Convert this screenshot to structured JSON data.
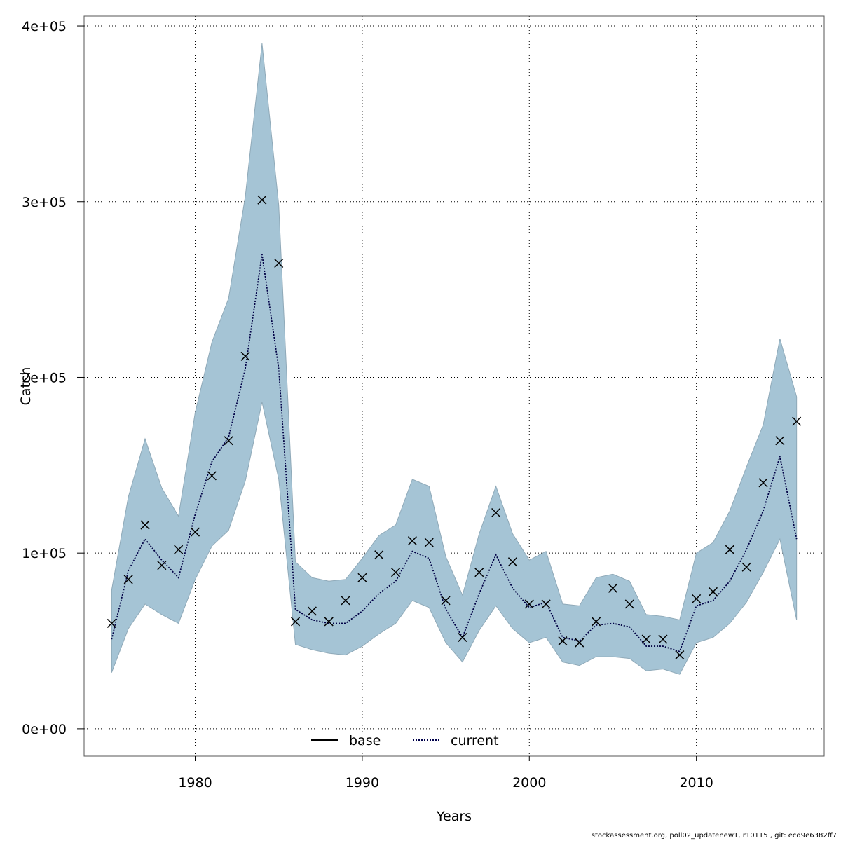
{
  "chart_data": {
    "type": "line",
    "xlabel": "Years",
    "ylabel": "Catch",
    "xlim": [
      1973.5,
      1917.5
    ],
    "ylim": [
      -15000,
      406000
    ],
    "x_ticks": [
      1980,
      1990,
      2000,
      2010
    ],
    "x_tick_labels": [
      "1980",
      "1990",
      "2000",
      "2010"
    ],
    "y_ticks": [
      0,
      100000,
      200000,
      300000,
      400000
    ],
    "y_tick_labels": [
      "0e+00",
      "1e+05",
      "2e+05",
      "3e+05",
      "4e+05"
    ],
    "grid": true,
    "legend_position": "bottom-center",
    "colors": {
      "band": "#a5c4d5",
      "band_edge": "#8fa9b8",
      "current_line": "#00004a",
      "observed": "#000000"
    },
    "x": [
      1975,
      1976,
      1977,
      1978,
      1979,
      1980,
      1981,
      1982,
      1983,
      1984,
      1985,
      1986,
      1987,
      1988,
      1989,
      1990,
      1991,
      1992,
      1993,
      1994,
      1995,
      1996,
      1997,
      1998,
      1999,
      2000,
      2001,
      2002,
      2003,
      2004,
      2005,
      2006,
      2007,
      2008,
      2009,
      2010,
      2011,
      2012,
      2013,
      2014,
      2015,
      2016
    ],
    "series": [
      {
        "name": "current",
        "style": "dotted",
        "values": [
          51000,
          90000,
          108000,
          96000,
          86000,
          122000,
          152000,
          166000,
          205000,
          270000,
          205000,
          68000,
          62000,
          60000,
          60000,
          67000,
          77000,
          84000,
          101000,
          97000,
          68000,
          52000,
          77000,
          99000,
          80000,
          69000,
          72000,
          52000,
          50000,
          59000,
          60000,
          58000,
          47000,
          47000,
          44000,
          70000,
          73000,
          84000,
          102000,
          124000,
          155000,
          108000
        ],
        "lower": [
          32000,
          57000,
          71000,
          65000,
          60000,
          85000,
          104000,
          113000,
          141000,
          186000,
          142000,
          48000,
          45000,
          43000,
          42000,
          47000,
          54000,
          60000,
          73000,
          69000,
          49000,
          38000,
          56000,
          70000,
          57000,
          49000,
          52000,
          38000,
          36000,
          41000,
          41000,
          40000,
          33000,
          34000,
          31000,
          49000,
          52000,
          60000,
          72000,
          89000,
          108000,
          62000
        ],
        "upper": [
          79000,
          132000,
          165000,
          137000,
          121000,
          180000,
          220000,
          245000,
          303000,
          390000,
          298000,
          95000,
          86000,
          84000,
          85000,
          97000,
          110000,
          116000,
          142000,
          138000,
          98000,
          76000,
          111000,
          138000,
          111000,
          96000,
          101000,
          71000,
          70000,
          86000,
          88000,
          84000,
          65000,
          64000,
          62000,
          100000,
          106000,
          124000,
          149000,
          173000,
          222000,
          189000
        ]
      },
      {
        "name": "base",
        "style": "solid",
        "values": [
          51000,
          90000,
          108000,
          96000,
          86000,
          122000,
          152000,
          166000,
          205000,
          270000,
          205000,
          68000,
          62000,
          60000,
          60000,
          67000,
          77000,
          84000,
          101000,
          97000,
          68000,
          52000,
          77000,
          99000,
          80000,
          69000,
          72000,
          52000,
          50000,
          59000,
          60000,
          58000,
          47000,
          47000,
          44000,
          70000,
          73000,
          84000,
          102000,
          124000,
          155000,
          108000
        ]
      }
    ],
    "observed": [
      60000,
      85000,
      116000,
      93000,
      102000,
      112000,
      144000,
      164000,
      212000,
      301000,
      265000,
      61000,
      67000,
      61000,
      73000,
      86000,
      99000,
      89000,
      107000,
      106000,
      73000,
      52000,
      89000,
      123000,
      95000,
      71000,
      71000,
      50000,
      49000,
      61000,
      80000,
      71000,
      51000,
      51000,
      42000,
      74000,
      78000,
      102000,
      92000,
      140000,
      164000,
      175000
    ]
  },
  "legend": {
    "base_label": "base",
    "current_label": "current"
  },
  "footnote": "stockassessment.org, poll02_updatenew1, r10115 , git: ecd9e6382ff7"
}
